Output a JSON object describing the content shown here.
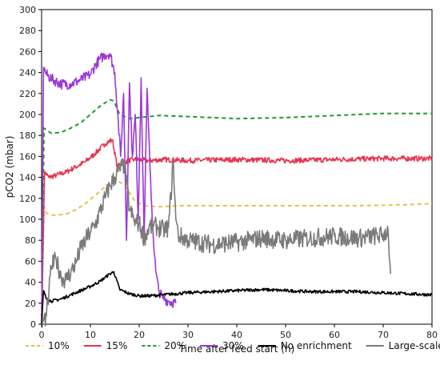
{
  "chart_data": {
    "type": "line",
    "xlabel": "Time after feed start (h)",
    "ylabel": "pCO2 (mbar)",
    "xlim": [
      0,
      80
    ],
    "ylim": [
      0,
      300
    ],
    "xticks": [
      0,
      10,
      20,
      30,
      40,
      50,
      60,
      70,
      80
    ],
    "yticks": [
      0,
      20,
      40,
      60,
      80,
      100,
      120,
      140,
      160,
      180,
      200,
      220,
      240,
      260,
      280,
      300
    ],
    "grid": false,
    "legend_position": "bottom",
    "series": [
      {
        "name": "10%",
        "color": "#e3c34b",
        "dash": "dashed",
        "x": [
          0,
          0.5,
          1,
          2,
          3,
          5,
          7,
          9,
          11,
          13,
          15,
          17,
          19,
          21,
          24,
          28,
          35,
          45,
          55,
          65,
          75,
          80
        ],
        "y": [
          0,
          112,
          106,
          104,
          104,
          105,
          109,
          115,
          123,
          131,
          138,
          133,
          118,
          113,
          112,
          113,
          113,
          113,
          113,
          113,
          114,
          115
        ]
      },
      {
        "name": "15%",
        "color": "#e8344e",
        "dash": "solid",
        "noise": 2.5,
        "x": [
          0,
          0.6,
          1.5,
          3,
          5,
          7,
          9,
          11,
          13,
          14.5,
          15.5,
          17,
          19,
          22,
          25,
          30,
          40,
          50,
          60,
          70,
          80
        ],
        "y": [
          0,
          145,
          140,
          142,
          145,
          150,
          155,
          163,
          172,
          176,
          150,
          155,
          157,
          156,
          157,
          156,
          157,
          156,
          157,
          158,
          158
        ]
      },
      {
        "name": "20%",
        "color": "#1f9a2a",
        "dash": "dashed",
        "x": [
          0,
          0.5,
          1,
          2,
          4,
          6,
          8,
          10,
          12,
          14,
          14.8,
          16,
          18,
          20,
          24,
          30,
          40,
          50,
          60,
          70,
          80
        ],
        "y": [
          0,
          187,
          185,
          182,
          183,
          187,
          192,
          200,
          208,
          214,
          213,
          200,
          196,
          197,
          199,
          198,
          196,
          197,
          199,
          201,
          201
        ]
      },
      {
        "name": "30%",
        "color": "#9b38d9",
        "dash": "solid",
        "noise": 5,
        "x": [
          0,
          0.4,
          1,
          2,
          4,
          6,
          8,
          10,
          11,
          12,
          13,
          14,
          15,
          15.6,
          16.2,
          16.8,
          17.4,
          18,
          18.6,
          19.2,
          19.8,
          20.4,
          21,
          21.6,
          22.2,
          22.8,
          23.4,
          24,
          24.8,
          26,
          27.5
        ],
        "y": [
          0,
          245,
          238,
          234,
          229,
          229,
          233,
          238,
          247,
          253,
          257,
          258,
          240,
          200,
          160,
          220,
          80,
          230,
          160,
          200,
          100,
          235,
          80,
          225,
          150,
          90,
          50,
          32,
          25,
          22,
          20
        ]
      },
      {
        "name": "No enrichment",
        "color": "#000000",
        "dash": "solid",
        "noise": 1.5,
        "x": [
          0,
          0.4,
          1,
          2,
          4,
          6,
          8,
          10,
          12,
          14,
          14.8,
          16,
          18,
          20,
          22,
          25,
          30,
          35,
          40,
          45,
          50,
          55,
          60,
          65,
          70,
          75,
          80
        ],
        "y": [
          0,
          32,
          24,
          22,
          24,
          28,
          32,
          36,
          41,
          48,
          50,
          33,
          29,
          27,
          27,
          28,
          30,
          31,
          32,
          33,
          32,
          31,
          31,
          31,
          30,
          29,
          28
        ]
      },
      {
        "name": "Large-scale",
        "color": "#7a7a7a",
        "dash": "solid",
        "noise": 9,
        "x": [
          0,
          1,
          1.5,
          2,
          3,
          4,
          5,
          6,
          7,
          8,
          9,
          10,
          11,
          12,
          13,
          14,
          15,
          16,
          17,
          18,
          19,
          20,
          21,
          22,
          23,
          24,
          25,
          26,
          27,
          27.5,
          28,
          30,
          35,
          40,
          45,
          50,
          55,
          60,
          65,
          70,
          71,
          71.5
        ],
        "y": [
          0,
          8,
          30,
          55,
          62,
          45,
          42,
          50,
          58,
          72,
          80,
          88,
          95,
          108,
          120,
          132,
          140,
          148,
          152,
          110,
          98,
          96,
          82,
          92,
          94,
          92,
          90,
          92,
          155,
          100,
          85,
          80,
          76,
          78,
          82,
          80,
          82,
          84,
          82,
          85,
          90,
          48
        ]
      }
    ]
  }
}
